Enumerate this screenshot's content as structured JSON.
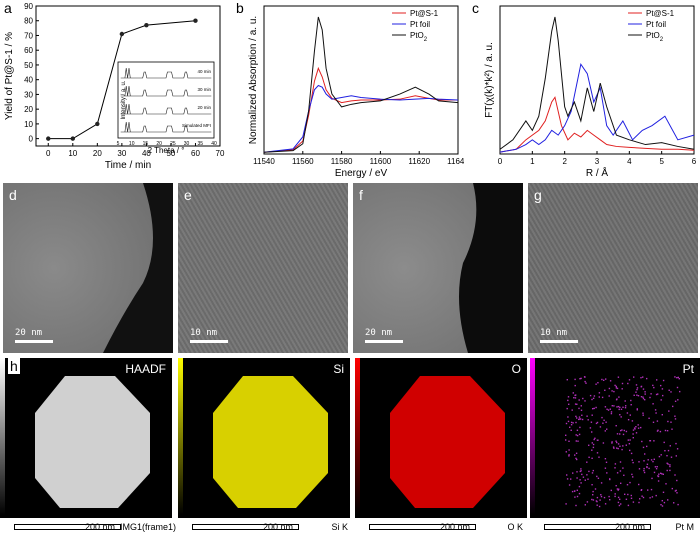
{
  "panels": {
    "a": {
      "label": "a"
    },
    "b": {
      "label": "b"
    },
    "c": {
      "label": "c"
    },
    "d": {
      "label": "d",
      "scale": "20 nm"
    },
    "e": {
      "label": "e",
      "scale": "10 nm"
    },
    "f": {
      "label": "f",
      "scale": "20 nm"
    },
    "g": {
      "label": "g",
      "scale": "10 nm"
    },
    "h": {
      "label": "h"
    }
  },
  "maps": [
    {
      "title": "HAADF",
      "scale": "200 nm",
      "footer": "IMG1(frame1)",
      "color": "#d8d8d8",
      "bar_color": "#ffffff"
    },
    {
      "title": "Si",
      "scale": "200 nm",
      "footer": "Si K",
      "color": "#e8e000",
      "bar_color": "#ffff00"
    },
    {
      "title": "O",
      "scale": "200 nm",
      "footer": "O K",
      "color": "#e00000",
      "bar_color": "#ff0000"
    },
    {
      "title": "Pt",
      "scale": "200 nm",
      "footer": "Pt M",
      "color": "#c030c0",
      "bar_color": "#ff00ff"
    }
  ],
  "chart_data": [
    {
      "type": "line",
      "panel": "a",
      "xlabel": "Time / min",
      "ylabel": "Yield of Pt@S-1 / %",
      "xlim": [
        -5,
        70
      ],
      "ylim": [
        -5,
        90
      ],
      "xticks": [
        0,
        10,
        20,
        30,
        40,
        50,
        60,
        70
      ],
      "yticks": [
        0,
        10,
        20,
        30,
        40,
        50,
        60,
        70,
        80,
        90
      ],
      "x": [
        0,
        10,
        20,
        30,
        40,
        60
      ],
      "y": [
        0,
        0,
        10,
        71,
        77,
        80
      ],
      "inset": {
        "xlabel": "2 Theta / °",
        "ylabel": "Intensity / a. u.",
        "xticks": [
          5,
          10,
          15,
          20,
          25,
          30,
          35,
          40
        ],
        "traces": [
          "40 min",
          "30 min",
          "20 min",
          "Simulated MFI"
        ]
      }
    },
    {
      "type": "line",
      "panel": "b",
      "xlabel": "Energy / eV",
      "ylabel": "Normalized Absorption / a. u.",
      "xlim": [
        11540,
        11640
      ],
      "xticks": [
        11540,
        11560,
        11580,
        11600,
        11620,
        11640
      ],
      "series": [
        {
          "name": "Pt@S-1",
          "color": "#e02020",
          "x": [
            11540,
            11555,
            11560,
            11563,
            11566,
            11568,
            11570,
            11572,
            11575,
            11580,
            11585,
            11590,
            11600,
            11610,
            11618,
            11625,
            11630,
            11640
          ],
          "y": [
            0.02,
            0.05,
            0.15,
            0.45,
            0.85,
            1.0,
            0.9,
            0.75,
            0.65,
            0.6,
            0.62,
            0.63,
            0.63,
            0.64,
            0.68,
            0.65,
            0.63,
            0.63
          ]
        },
        {
          "name": "Pt foil",
          "color": "#2020e0",
          "x": [
            11540,
            11555,
            11560,
            11563,
            11566,
            11568,
            11570,
            11572,
            11575,
            11580,
            11585,
            11590,
            11600,
            11610,
            11618,
            11625,
            11630,
            11640
          ],
          "y": [
            0.02,
            0.06,
            0.2,
            0.5,
            0.75,
            0.8,
            0.78,
            0.7,
            0.64,
            0.66,
            0.68,
            0.66,
            0.64,
            0.63,
            0.64,
            0.65,
            0.64,
            0.63
          ]
        },
        {
          "name": "PtO<sub>2</sub>",
          "color": "#101010",
          "x": [
            11540,
            11555,
            11560,
            11563,
            11566,
            11568,
            11570,
            11572,
            11575,
            11580,
            11585,
            11590,
            11600,
            11610,
            11618,
            11625,
            11630,
            11640
          ],
          "y": [
            0.02,
            0.04,
            0.12,
            0.5,
            1.2,
            1.6,
            1.45,
            1.0,
            0.7,
            0.55,
            0.58,
            0.6,
            0.62,
            0.7,
            0.78,
            0.7,
            0.62,
            0.6
          ]
        }
      ]
    },
    {
      "type": "line",
      "panel": "c",
      "xlabel": "R / Å",
      "ylabel": "FT(χ(k)*k²) / a. u.",
      "xlim": [
        0,
        6
      ],
      "xticks": [
        0,
        1,
        2,
        3,
        4,
        5,
        6
      ],
      "series": [
        {
          "name": "Pt@S-1",
          "color": "#e02020",
          "x": [
            0,
            0.5,
            0.8,
            1.0,
            1.2,
            1.4,
            1.6,
            1.7,
            1.9,
            2.1,
            2.3,
            2.5,
            2.7,
            2.9,
            3.1,
            3.3,
            3.6,
            4.0,
            4.5,
            5.0,
            5.5,
            6.0
          ],
          "y": [
            0.02,
            0.05,
            0.15,
            0.2,
            0.25,
            0.35,
            0.55,
            0.6,
            0.3,
            0.15,
            0.22,
            0.18,
            0.25,
            0.2,
            0.15,
            0.1,
            0.08,
            0.07,
            0.06,
            0.05,
            0.05,
            0.04
          ]
        },
        {
          "name": "Pt foil",
          "color": "#2020e0",
          "x": [
            0,
            0.5,
            0.8,
            1.0,
            1.2,
            1.4,
            1.6,
            1.8,
            2.0,
            2.2,
            2.5,
            2.7,
            2.9,
            3.1,
            3.3,
            3.5,
            3.8,
            4.1,
            4.4,
            4.7,
            5.1,
            5.5,
            6.0
          ],
          "y": [
            0.02,
            0.05,
            0.1,
            0.15,
            0.1,
            0.15,
            0.25,
            0.2,
            0.3,
            0.45,
            0.95,
            0.85,
            0.55,
            0.7,
            0.3,
            0.2,
            0.35,
            0.15,
            0.25,
            0.3,
            0.4,
            0.15,
            0.2
          ]
        },
        {
          "name": "PtO<sub>2</sub>",
          "color": "#101010",
          "x": [
            0,
            0.4,
            0.8,
            1.0,
            1.2,
            1.4,
            1.6,
            1.7,
            1.8,
            2.0,
            2.1,
            2.3,
            2.5,
            2.7,
            2.9,
            3.1,
            3.3,
            3.6,
            4.0,
            4.5,
            5.0,
            5.5,
            6.0
          ],
          "y": [
            0.05,
            0.15,
            0.35,
            0.25,
            0.4,
            0.8,
            1.3,
            1.45,
            1.2,
            0.5,
            0.4,
            0.55,
            0.35,
            0.7,
            0.45,
            0.75,
            0.5,
            0.2,
            0.15,
            0.1,
            0.12,
            0.08,
            0.05
          ]
        }
      ]
    }
  ]
}
